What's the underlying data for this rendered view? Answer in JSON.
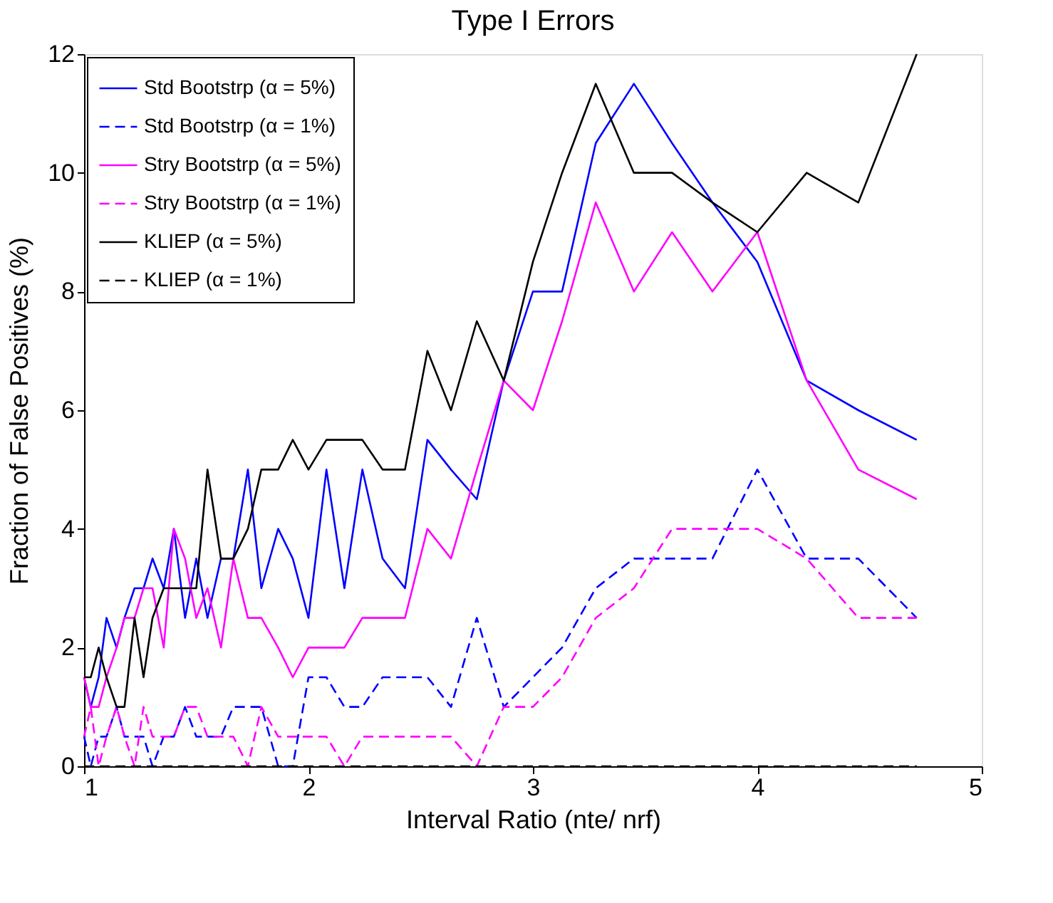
{
  "chart_data": {
    "type": "line",
    "title": "Type I Errors",
    "xlabel": "Interval Ratio (nte/ nrf)",
    "ylabel": "Fraction of False Positives (%)",
    "x": [
      1.0,
      1.03,
      1.065,
      1.1,
      1.145,
      1.18,
      1.225,
      1.265,
      1.305,
      1.355,
      1.4,
      1.45,
      1.5,
      1.55,
      1.61,
      1.665,
      1.73,
      1.79,
      1.865,
      1.93,
      2.0,
      2.08,
      2.16,
      2.24,
      2.33,
      2.43,
      2.53,
      2.635,
      2.75,
      2.87,
      3.0,
      3.13,
      3.28,
      3.45,
      3.62,
      3.8,
      4.0,
      4.22,
      4.45,
      4.71
    ],
    "series": [
      {
        "name": "Std Bootstrp (α = 5%)",
        "color": "#0000ff",
        "line_style": "solid",
        "values": [
          1.5,
          1.0,
          1.5,
          2.5,
          2.0,
          2.5,
          3.0,
          3.0,
          3.5,
          3.0,
          4.0,
          2.5,
          3.5,
          2.5,
          3.5,
          3.5,
          5.0,
          3.0,
          4.0,
          3.5,
          2.5,
          5.0,
          3.0,
          5.0,
          3.5,
          3.0,
          5.5,
          5.0,
          4.5,
          6.5,
          8.0,
          8.0,
          10.5,
          11.5,
          10.5,
          9.5,
          8.5,
          6.5,
          6.0,
          5.5
        ]
      },
      {
        "name": "Std Bootstrp (α = 1%)",
        "color": "#0000ff",
        "line_style": "dashed",
        "values": [
          0.5,
          0.0,
          0.5,
          0.5,
          1.0,
          0.5,
          0.5,
          0.5,
          0.0,
          0.5,
          0.5,
          1.0,
          0.5,
          0.5,
          0.5,
          1.0,
          1.0,
          1.0,
          0.0,
          0.0,
          1.5,
          1.5,
          1.0,
          1.0,
          1.5,
          1.5,
          1.5,
          1.0,
          2.5,
          1.0,
          1.5,
          2.0,
          3.0,
          3.5,
          3.5,
          3.5,
          5.0,
          3.5,
          3.5,
          2.5
        ]
      },
      {
        "name": "Stry Bootstrp (α = 5%)",
        "color": "#ff00ff",
        "line_style": "solid",
        "values": [
          1.5,
          1.0,
          1.0,
          1.5,
          2.0,
          2.5,
          2.5,
          3.0,
          3.0,
          2.0,
          4.0,
          3.5,
          2.5,
          3.0,
          2.0,
          3.5,
          2.5,
          2.5,
          2.0,
          1.5,
          2.0,
          2.0,
          2.0,
          2.5,
          2.5,
          2.5,
          4.0,
          3.5,
          5.0,
          6.5,
          6.0,
          7.5,
          9.5,
          8.0,
          9.0,
          8.0,
          9.0,
          6.5,
          5.0,
          4.5
        ]
      },
      {
        "name": "Stry Bootstrp (α = 1%)",
        "color": "#ff00ff",
        "line_style": "dashed",
        "values": [
          0.5,
          1.0,
          0.0,
          0.5,
          1.0,
          0.5,
          0.0,
          1.0,
          0.5,
          0.5,
          0.5,
          1.0,
          1.0,
          0.5,
          0.5,
          0.5,
          0.0,
          1.0,
          0.5,
          0.5,
          0.5,
          0.5,
          0.0,
          0.5,
          0.5,
          0.5,
          0.5,
          0.5,
          0.0,
          1.0,
          1.0,
          1.5,
          2.5,
          3.0,
          4.0,
          4.0,
          4.0,
          3.5,
          2.5,
          2.5
        ]
      },
      {
        "name": "KLIEP (α = 5%)",
        "color": "#000000",
        "line_style": "solid",
        "values": [
          1.5,
          1.5,
          2.0,
          1.5,
          1.0,
          1.0,
          2.5,
          1.5,
          2.5,
          3.0,
          3.0,
          3.0,
          3.0,
          5.0,
          3.5,
          3.5,
          4.0,
          5.0,
          5.0,
          5.5,
          5.0,
          5.5,
          5.5,
          5.5,
          5.0,
          5.0,
          7.0,
          6.0,
          7.5,
          6.5,
          8.5,
          10.0,
          11.5,
          10.0,
          10.0,
          9.5,
          9.0,
          10.0,
          9.5,
          12.0
        ]
      },
      {
        "name": "KLIEP (α = 1%)",
        "color": "#000000",
        "line_style": "dashed",
        "values": [
          0,
          0,
          0,
          0,
          0,
          0,
          0,
          0,
          0,
          0,
          0,
          0,
          0,
          0,
          0,
          0,
          0,
          0,
          0,
          0,
          0,
          0,
          0,
          0,
          0,
          0,
          0,
          0,
          0,
          0,
          0,
          0,
          0,
          0,
          0,
          0,
          0,
          0,
          0,
          0
        ]
      }
    ],
    "xlim": [
      1,
      5
    ],
    "xticks": [
      1,
      2,
      3,
      4,
      5
    ],
    "ylim": [
      0,
      12
    ],
    "yticks": [
      0,
      2,
      4,
      6,
      8,
      10,
      12
    ],
    "grid": false,
    "legend": "top left",
    "marker": "none"
  }
}
